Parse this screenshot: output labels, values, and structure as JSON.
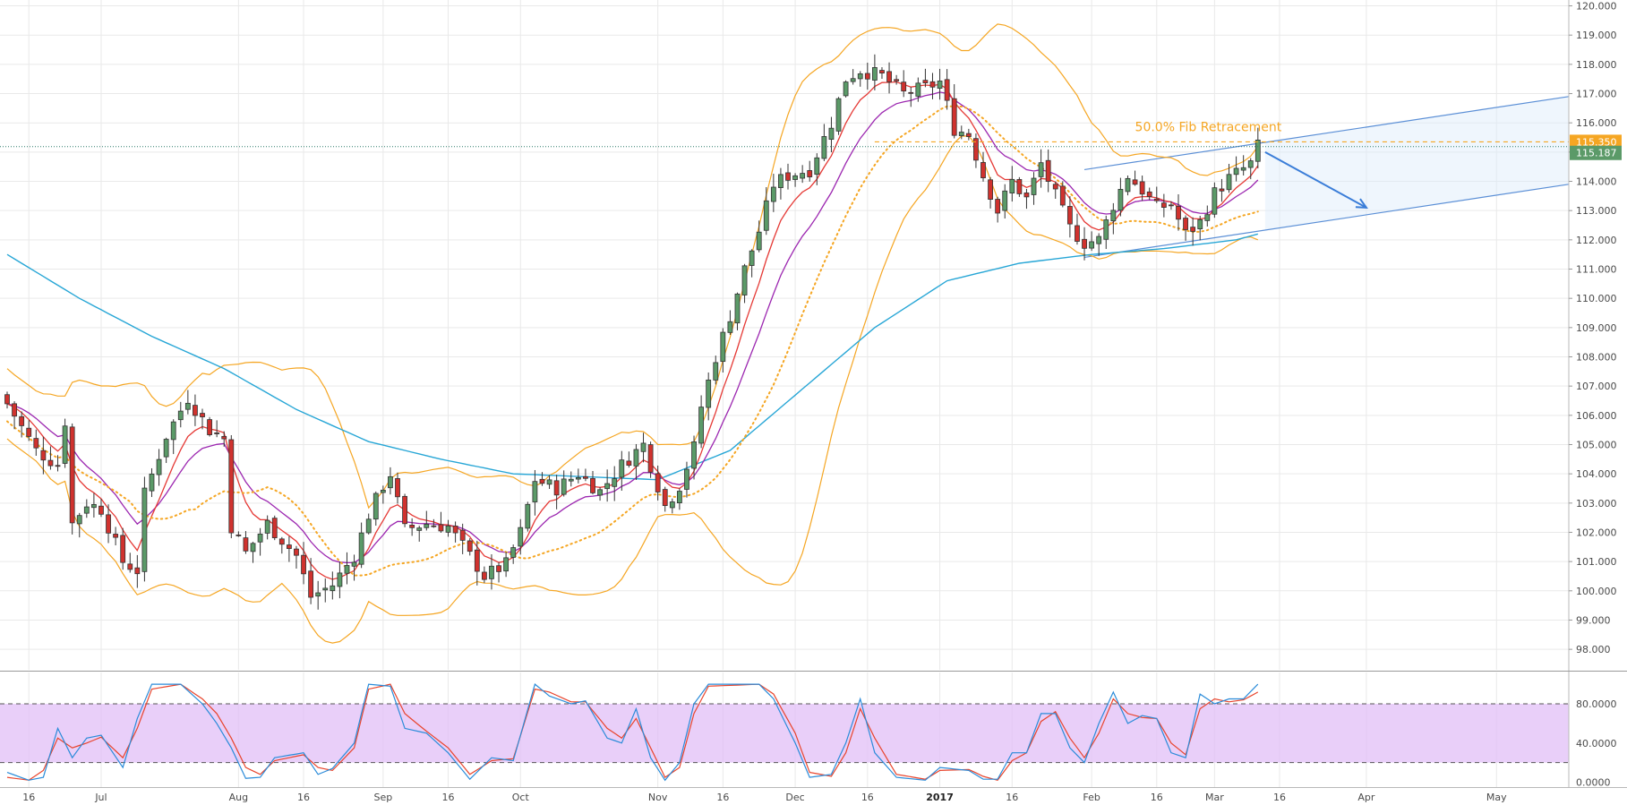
{
  "chart_data": {
    "type": "candlestick",
    "title": "",
    "colors": {
      "up": "#5b9a68",
      "down": "#d0322e",
      "bollinger": "#f5a623",
      "ma_long": "#27a6d6",
      "ema_fast": "#e53935",
      "ema_slow": "#9c27b0",
      "sar": "#f5a623",
      "channel": "#5b8fd6",
      "grid": "#e9e9e9",
      "stoch_band": "#e1bff7",
      "stoch_k": "#2a8bd9",
      "stoch_d": "#e8442c",
      "current_tag": "#5b9a68",
      "fib_tag": "#f5a623"
    },
    "price_axis": {
      "min": 97.3,
      "max": 120.2,
      "ticks": [
        "98.000",
        "99.000",
        "100.000",
        "101.000",
        "102.000",
        "103.000",
        "104.000",
        "105.000",
        "106.000",
        "107.000",
        "108.000",
        "109.000",
        "110.000",
        "111.000",
        "112.000",
        "113.000",
        "114.000",
        "115.000",
        "116.000",
        "117.000",
        "118.000",
        "119.000",
        "120.000"
      ]
    },
    "x_range": [
      0,
      216
    ],
    "x_ticks": [
      {
        "label": "16",
        "x": 3,
        "bold": false
      },
      {
        "label": "Jul",
        "x": 13,
        "bold": false
      },
      {
        "label": "Aug",
        "x": 32,
        "bold": false
      },
      {
        "label": "16",
        "x": 41,
        "bold": false
      },
      {
        "label": "Sep",
        "x": 52,
        "bold": false
      },
      {
        "label": "16",
        "x": 61,
        "bold": false
      },
      {
        "label": "Oct",
        "x": 71,
        "bold": false
      },
      {
        "label": "Nov",
        "x": 90,
        "bold": false
      },
      {
        "label": "16",
        "x": 99,
        "bold": false
      },
      {
        "label": "Dec",
        "x": 109,
        "bold": false
      },
      {
        "label": "16",
        "x": 119,
        "bold": false
      },
      {
        "label": "2017",
        "x": 129,
        "bold": true
      },
      {
        "label": "16",
        "x": 139,
        "bold": false
      },
      {
        "label": "Feb",
        "x": 150,
        "bold": false
      },
      {
        "label": "16",
        "x": 159,
        "bold": false
      },
      {
        "label": "Mar",
        "x": 167,
        "bold": false
      },
      {
        "label": "16",
        "x": 176,
        "bold": false
      },
      {
        "label": "Apr",
        "x": 188,
        "bold": false
      },
      {
        "label": "May",
        "x": 206,
        "bold": false
      }
    ],
    "price_anchors": [
      [
        0,
        106.4
      ],
      [
        4,
        104.8
      ],
      [
        7,
        104.3
      ],
      [
        8,
        105.8
      ],
      [
        9,
        102.3
      ],
      [
        11,
        103.0
      ],
      [
        13,
        102.8
      ],
      [
        16,
        101.0
      ],
      [
        18,
        100.7
      ],
      [
        19,
        103.3
      ],
      [
        22,
        105.3
      ],
      [
        25,
        106.6
      ],
      [
        28,
        105.5
      ],
      [
        30,
        105.2
      ],
      [
        31,
        102.2
      ],
      [
        33,
        101.3
      ],
      [
        36,
        102.3
      ],
      [
        40,
        101.2
      ],
      [
        42,
        99.8
      ],
      [
        45,
        100.2
      ],
      [
        48,
        101.2
      ],
      [
        50,
        102.6
      ],
      [
        52,
        103.6
      ],
      [
        53,
        104.0
      ],
      [
        55,
        102.1
      ],
      [
        58,
        102.3
      ],
      [
        61,
        102.2
      ],
      [
        64,
        101.2
      ],
      [
        66,
        100.5
      ],
      [
        69,
        100.9
      ],
      [
        71,
        102.0
      ],
      [
        73,
        103.8
      ],
      [
        76,
        103.5
      ],
      [
        79,
        104.0
      ],
      [
        82,
        103.4
      ],
      [
        85,
        104.3
      ],
      [
        88,
        105.0
      ],
      [
        89,
        104.3
      ],
      [
        91,
        102.9
      ],
      [
        93,
        103.6
      ],
      [
        95,
        104.9
      ],
      [
        96,
        106.3
      ],
      [
        98,
        108.0
      ],
      [
        100,
        109.4
      ],
      [
        102,
        111.0
      ],
      [
        104,
        112.3
      ],
      [
        106,
        113.9
      ],
      [
        108,
        114.2
      ],
      [
        111,
        114.4
      ],
      [
        114,
        116.0
      ],
      [
        116,
        117.5
      ],
      [
        118,
        117.8
      ],
      [
        121,
        117.6
      ],
      [
        124,
        117.0
      ],
      [
        127,
        117.2
      ],
      [
        129,
        117.4
      ],
      [
        131,
        115.8
      ],
      [
        133,
        115.6
      ],
      [
        135,
        114.2
      ],
      [
        137,
        113.0
      ],
      [
        139,
        114.0
      ],
      [
        141,
        113.4
      ],
      [
        143,
        114.6
      ],
      [
        145,
        113.5
      ],
      [
        147,
        112.4
      ],
      [
        149,
        111.9
      ],
      [
        151,
        112.0
      ],
      [
        153,
        113.2
      ],
      [
        155,
        114.2
      ],
      [
        157,
        113.7
      ],
      [
        159,
        113.1
      ],
      [
        161,
        113.2
      ],
      [
        163,
        112.2
      ],
      [
        165,
        112.6
      ],
      [
        167,
        113.6
      ],
      [
        169,
        114.1
      ],
      [
        172,
        114.6
      ],
      [
        173,
        115.2
      ]
    ],
    "ma_long_anchors": [
      [
        0,
        111.5
      ],
      [
        10,
        110.0
      ],
      [
        20,
        108.7
      ],
      [
        30,
        107.6
      ],
      [
        40,
        106.2
      ],
      [
        50,
        105.1
      ],
      [
        60,
        104.5
      ],
      [
        70,
        104.0
      ],
      [
        80,
        103.9
      ],
      [
        90,
        103.8
      ],
      [
        100,
        104.8
      ],
      [
        110,
        106.9
      ],
      [
        120,
        109.0
      ],
      [
        130,
        110.6
      ],
      [
        140,
        111.2
      ],
      [
        150,
        111.5
      ],
      [
        160,
        111.7
      ],
      [
        170,
        112.0
      ],
      [
        173,
        112.2
      ]
    ],
    "fib_level": 115.35,
    "fib_label": "50.0% Fib Retracement",
    "fib_x_start": 120,
    "fib_x_end": 216,
    "current_level": 115.187,
    "current_label": "115.187",
    "fib_tag_label": "115.350",
    "channel": {
      "upper": [
        [
          149,
          114.4
        ],
        [
          216,
          116.9
        ]
      ],
      "lower": [
        [
          149,
          111.4
        ],
        [
          216,
          113.9
        ]
      ],
      "extension_start": 174
    },
    "arrow": {
      "from": [
        174,
        115.0
      ],
      "to": [
        188,
        113.1
      ]
    },
    "stochastic": {
      "min": -5,
      "max": 112,
      "ticks": [
        "0.0000",
        "40.0000",
        "80.0000"
      ],
      "tick_values": [
        0,
        40,
        80
      ],
      "band": [
        20,
        80
      ],
      "k_anchors": [
        [
          0,
          10
        ],
        [
          3,
          2
        ],
        [
          5,
          5
        ],
        [
          7,
          55
        ],
        [
          9,
          25
        ],
        [
          11,
          45
        ],
        [
          13,
          48
        ],
        [
          16,
          15
        ],
        [
          18,
          65
        ],
        [
          20,
          100
        ],
        [
          24,
          100
        ],
        [
          27,
          80
        ],
        [
          29,
          60
        ],
        [
          31,
          35
        ],
        [
          33,
          4
        ],
        [
          35,
          5
        ],
        [
          37,
          25
        ],
        [
          41,
          30
        ],
        [
          43,
          8
        ],
        [
          45,
          14
        ],
        [
          48,
          40
        ],
        [
          50,
          100
        ],
        [
          53,
          98
        ],
        [
          55,
          55
        ],
        [
          58,
          50
        ],
        [
          61,
          30
        ],
        [
          64,
          3
        ],
        [
          67,
          25
        ],
        [
          70,
          22
        ],
        [
          73,
          100
        ],
        [
          75,
          88
        ],
        [
          78,
          80
        ],
        [
          80,
          83
        ],
        [
          83,
          45
        ],
        [
          85,
          40
        ],
        [
          87,
          75
        ],
        [
          89,
          25
        ],
        [
          91,
          2
        ],
        [
          93,
          20
        ],
        [
          95,
          80
        ],
        [
          97,
          100
        ],
        [
          104,
          100
        ],
        [
          106,
          85
        ],
        [
          109,
          40
        ],
        [
          111,
          5
        ],
        [
          114,
          8
        ],
        [
          116,
          40
        ],
        [
          118,
          85
        ],
        [
          120,
          30
        ],
        [
          123,
          5
        ],
        [
          127,
          2
        ],
        [
          129,
          15
        ],
        [
          133,
          12
        ],
        [
          135,
          3
        ],
        [
          137,
          3
        ],
        [
          139,
          30
        ],
        [
          141,
          30
        ],
        [
          143,
          70
        ],
        [
          145,
          70
        ],
        [
          147,
          35
        ],
        [
          149,
          20
        ],
        [
          151,
          60
        ],
        [
          153,
          92
        ],
        [
          155,
          60
        ],
        [
          157,
          68
        ],
        [
          159,
          65
        ],
        [
          161,
          30
        ],
        [
          163,
          25
        ],
        [
          165,
          90
        ],
        [
          167,
          80
        ],
        [
          169,
          85
        ],
        [
          171,
          85
        ],
        [
          173,
          100
        ]
      ],
      "d_anchors": [
        [
          0,
          5
        ],
        [
          3,
          2
        ],
        [
          5,
          12
        ],
        [
          7,
          45
        ],
        [
          9,
          35
        ],
        [
          11,
          40
        ],
        [
          13,
          46
        ],
        [
          16,
          25
        ],
        [
          18,
          55
        ],
        [
          20,
          95
        ],
        [
          24,
          100
        ],
        [
          27,
          85
        ],
        [
          29,
          70
        ],
        [
          31,
          45
        ],
        [
          33,
          15
        ],
        [
          35,
          8
        ],
        [
          37,
          22
        ],
        [
          41,
          28
        ],
        [
          43,
          15
        ],
        [
          45,
          12
        ],
        [
          48,
          35
        ],
        [
          50,
          95
        ],
        [
          53,
          100
        ],
        [
          55,
          70
        ],
        [
          58,
          52
        ],
        [
          61,
          35
        ],
        [
          64,
          8
        ],
        [
          67,
          22
        ],
        [
          70,
          24
        ],
        [
          73,
          95
        ],
        [
          75,
          92
        ],
        [
          78,
          82
        ],
        [
          80,
          82
        ],
        [
          83,
          55
        ],
        [
          85,
          45
        ],
        [
          87,
          65
        ],
        [
          89,
          35
        ],
        [
          91,
          5
        ],
        [
          93,
          15
        ],
        [
          95,
          70
        ],
        [
          97,
          98
        ],
        [
          104,
          100
        ],
        [
          106,
          90
        ],
        [
          109,
          50
        ],
        [
          111,
          10
        ],
        [
          114,
          6
        ],
        [
          116,
          30
        ],
        [
          118,
          75
        ],
        [
          120,
          45
        ],
        [
          123,
          8
        ],
        [
          127,
          3
        ],
        [
          129,
          12
        ],
        [
          133,
          13
        ],
        [
          135,
          6
        ],
        [
          137,
          2
        ],
        [
          139,
          22
        ],
        [
          141,
          30
        ],
        [
          143,
          62
        ],
        [
          145,
          72
        ],
        [
          147,
          45
        ],
        [
          149,
          25
        ],
        [
          151,
          50
        ],
        [
          153,
          85
        ],
        [
          155,
          70
        ],
        [
          157,
          66
        ],
        [
          159,
          65
        ],
        [
          161,
          40
        ],
        [
          163,
          28
        ],
        [
          165,
          75
        ],
        [
          167,
          85
        ],
        [
          169,
          82
        ],
        [
          171,
          84
        ],
        [
          173,
          92
        ]
      ]
    }
  }
}
